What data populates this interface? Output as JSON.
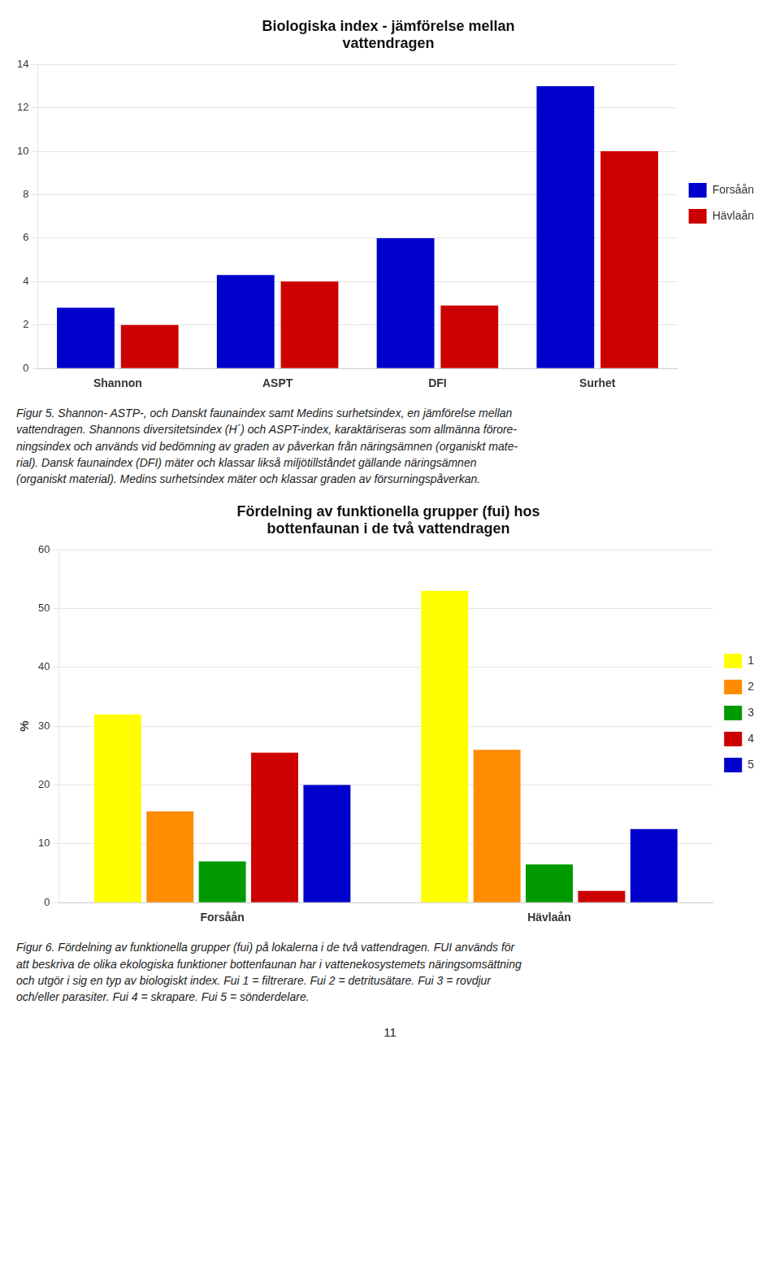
{
  "chart_data": [
    {
      "type": "bar",
      "title": "Biologiska index - jämförelse mellan\nvattendragen",
      "categories": [
        "Shannon",
        "ASPT",
        "DFI",
        "Surhet"
      ],
      "series": [
        {
          "name": "Forsåån",
          "color": "#0000CC",
          "values": [
            2.8,
            4.3,
            6.0,
            13.0
          ]
        },
        {
          "name": "Hävlaån",
          "color": "#CC0000",
          "values": [
            2.0,
            4.0,
            2.9,
            10.0
          ]
        }
      ],
      "ylim": [
        0,
        14
      ],
      "yticks": [
        0,
        2,
        4,
        6,
        8,
        10,
        12,
        14
      ],
      "grid": "y",
      "legend": "right",
      "annotations": [
        "Figur 5. Shannon- ASTP-, och Danskt faunaindex samt Medins surhetsindex, en jämförelse mellan\nvattendragen. Shannons diversitetsindex (H´) och ASPT-index, karaktäriseras som allmänna förore-\nningsindex och används vid bedömning av graden av påverkan från näringsämnen (organiskt mate-\nrial). Dansk faunaindex (DFI) mäter och klassar likså miljötillståndet gällande näringsämnen\n(organiskt material). Medins surhetsindex mäter och klassar graden av försurningspåverkan."
      ]
    },
    {
      "type": "bar",
      "title": "Fördelning av funktionella grupper (fui) hos\nbottenfaunan i de två vattendragen",
      "y_label": "%",
      "categories": [
        "Forsåån",
        "Hävlaån"
      ],
      "series": [
        {
          "name": "1",
          "color": "#FFFF00",
          "values": [
            32.0,
            53.0
          ]
        },
        {
          "name": "2",
          "color": "#FF8C00",
          "values": [
            15.5,
            26.0
          ]
        },
        {
          "name": "3",
          "color": "#009900",
          "values": [
            7.0,
            6.5
          ]
        },
        {
          "name": "4",
          "color": "#CC0000",
          "values": [
            25.5,
            2.0
          ]
        },
        {
          "name": "5",
          "color": "#0000CC",
          "values": [
            20.0,
            12.5
          ]
        }
      ],
      "ylim": [
        0,
        60
      ],
      "yticks": [
        0,
        10,
        20,
        30,
        40,
        50,
        60
      ],
      "grid": "y",
      "legend": "right",
      "annotations": [
        "Figur 6. Fördelning av funktionella grupper (fui) på lokalerna i de två vattendragen. FUI används för\natt beskriva de olika ekologiska funktioner bottenfaunan har i vattenekosystemets näringsomsättning\noch utgör i sig en typ av biologiskt index. Fui 1 = filtrerare. Fui 2 = detritusätare. Fui 3 = rovdjur\noch/eller parasiter. Fui 4 = skrapare. Fui 5 = sönderdelare.",
        "11"
      ]
    }
  ]
}
